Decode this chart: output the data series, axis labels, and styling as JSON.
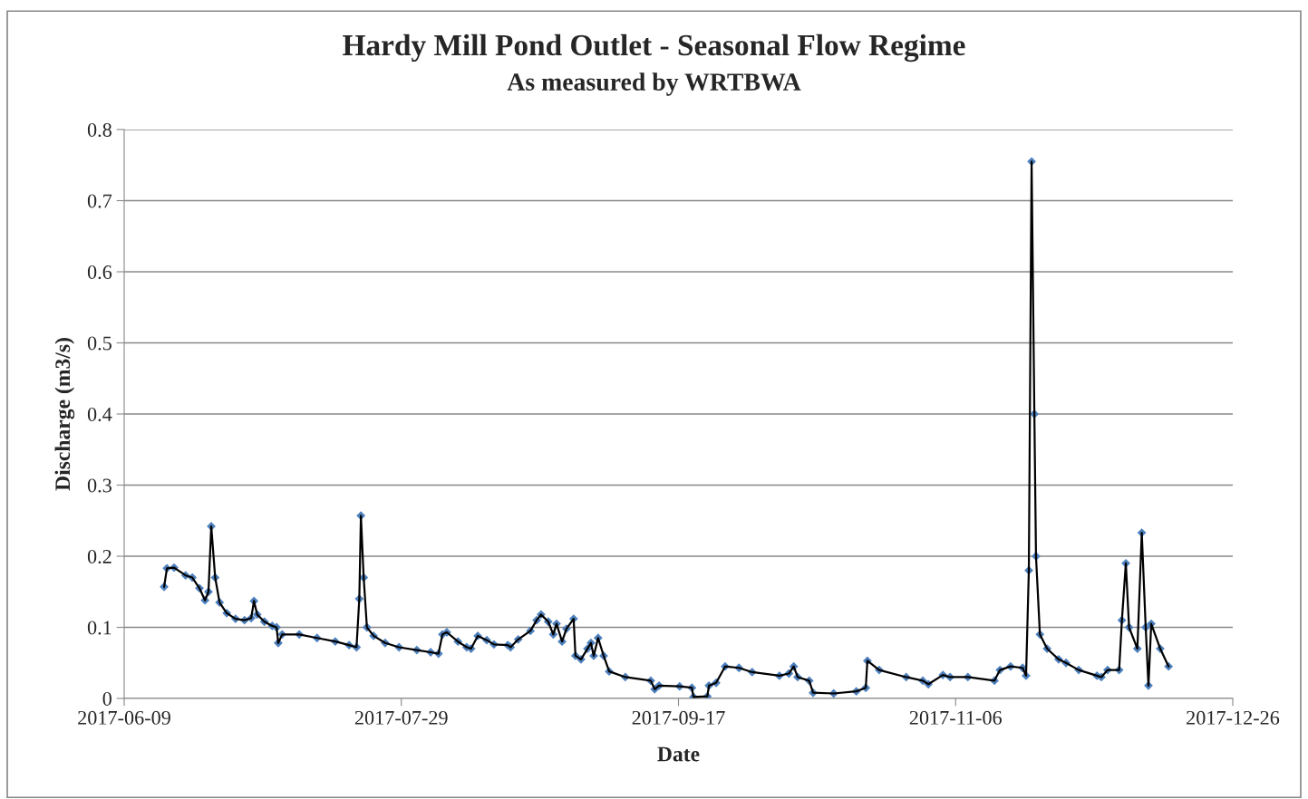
{
  "chart_data": {
    "type": "line",
    "title": "Hardy Mill Pond Outlet - Seasonal Flow Regime",
    "subtitle": "As measured by WRTBWA",
    "xlabel": "Date",
    "ylabel": "Discharge (m3/s)",
    "x": [
      "2017-06-16T05:00",
      "2017-06-16T17:00",
      "2017-06-18T00:00",
      "2017-06-20T02:00",
      "2017-06-21T07:00",
      "2017-06-22T14:00",
      "2017-06-23T14:00",
      "2017-06-24T05:00",
      "2017-06-24T17:00",
      "2017-06-25T10:00",
      "2017-06-26T05:00",
      "2017-06-27T12:00",
      "2017-06-29T02:00",
      "2017-06-30T17:00",
      "2017-07-01T22:00",
      "2017-07-02T10:00",
      "2017-07-03T00:00",
      "2017-07-04T07:00",
      "2017-07-05T17:00",
      "2017-07-06T12:00",
      "2017-07-06T19:00",
      "2017-07-07T12:00",
      "2017-07-10T14:00",
      "2017-07-13T19:00",
      "2017-07-17T02:00",
      "2017-07-19T14:00",
      "2017-07-20T22:00",
      "2017-07-21T10:00",
      "2017-07-21T17:00",
      "2017-07-22T05:00",
      "2017-07-22T19:00",
      "2017-07-24T00:00",
      "2017-07-26T02:00",
      "2017-07-28T14:00",
      "2017-07-31T19:00",
      "2017-08-03T07:00",
      "2017-08-04T17:00",
      "2017-08-05T10:00",
      "2017-08-06T05:00",
      "2017-08-08T05:00",
      "2017-08-09T19:00",
      "2017-08-10T14:00",
      "2017-08-11T19:00",
      "2017-08-13T10:00",
      "2017-08-14T17:00",
      "2017-08-17T05:00",
      "2017-08-17T17:00",
      "2017-08-19T02:00",
      "2017-08-21T07:00",
      "2017-08-22T10:00",
      "2017-08-23T05:00",
      "2017-08-24T12:00",
      "2017-08-25T10:00",
      "2017-08-26T00:00",
      "2017-08-27T00:00",
      "2017-08-27T19:00",
      "2017-08-29T02:00",
      "2017-08-29T10:00",
      "2017-08-30T10:00",
      "2017-08-31T14:00",
      "2017-09-01T05:00",
      "2017-09-01T17:00",
      "2017-09-02T12:00",
      "2017-09-03T12:00",
      "2017-09-04T12:00",
      "2017-09-07T10:00",
      "2017-09-12T00:00",
      "2017-09-12T17:00",
      "2017-09-13T12:00",
      "2017-09-17T05:00",
      "2017-09-19T10:00",
      "2017-09-19T17:00",
      "2017-09-22T05:00",
      "2017-09-22T12:00",
      "2017-09-23T19:00",
      "2017-09-25T10:00",
      "2017-09-27T22:00",
      "2017-09-30T07:00",
      "2017-10-05T05:00",
      "2017-10-06T22:00",
      "2017-10-07T19:00",
      "2017-10-08T12:00",
      "2017-10-10T14:00",
      "2017-10-11T07:00",
      "2017-10-15T00:00",
      "2017-10-19T02:00",
      "2017-10-20T19:00",
      "2017-10-21T02:00",
      "2017-10-23T05:00",
      "2017-10-28T02:00",
      "2017-10-31T02:00",
      "2017-11-01T02:00",
      "2017-11-03T17:00",
      "2017-11-05T00:00",
      "2017-11-08T05:00",
      "2017-11-13T00:00",
      "2017-11-14T00:00",
      "2017-11-15T22:00",
      "2017-11-18T02:00",
      "2017-11-18T17:00",
      "2017-11-19T05:00",
      "2017-11-19T17:00",
      "2017-11-20T05:00",
      "2017-11-20T12:00",
      "2017-11-21T05:00",
      "2017-11-22T12:00",
      "2017-11-24T14:00",
      "2017-11-25T22:00",
      "2017-11-28T05:00",
      "2017-12-01T12:00",
      "2017-12-02T07:00",
      "2017-12-03T10:00",
      "2017-12-05T12:00",
      "2017-12-06T00:00",
      "2017-12-06T17:00",
      "2017-12-07T07:00",
      "2017-12-08T19:00",
      "2017-12-09T14:00",
      "2017-12-10T07:00",
      "2017-12-10T19:00",
      "2017-12-11T07:00",
      "2017-12-12T22:00",
      "2017-12-14T10:00"
    ],
    "series": [
      {
        "color": "#4f81bd",
        "values": [
          0.157,
          0.183,
          0.184,
          0.173,
          0.17,
          0.155,
          0.138,
          0.15,
          0.242,
          0.17,
          0.135,
          0.12,
          0.112,
          0.11,
          0.113,
          0.137,
          0.118,
          0.108,
          0.102,
          0.1,
          0.078,
          0.09,
          0.09,
          0.085,
          0.08,
          0.075,
          0.072,
          0.14,
          0.257,
          0.17,
          0.1,
          0.088,
          0.078,
          0.072,
          0.068,
          0.065,
          0.063,
          0.09,
          0.093,
          0.08,
          0.072,
          0.07,
          0.088,
          0.082,
          0.076,
          0.075,
          0.072,
          0.083,
          0.095,
          0.11,
          0.118,
          0.108,
          0.09,
          0.105,
          0.08,
          0.098,
          0.112,
          0.06,
          0.055,
          0.07,
          0.078,
          0.06,
          0.085,
          0.06,
          0.038,
          0.03,
          0.025,
          0.013,
          0.018,
          0.017,
          0.015,
          0.002,
          0.003,
          0.018,
          0.022,
          0.045,
          0.043,
          0.037,
          0.032,
          0.035,
          0.045,
          0.03,
          0.025,
          0.008,
          0.007,
          0.01,
          0.015,
          0.053,
          0.04,
          0.03,
          0.025,
          0.02,
          0.033,
          0.03,
          0.03,
          0.025,
          0.04,
          0.045,
          0.043,
          0.032,
          0.18,
          0.755,
          0.4,
          0.2,
          0.09,
          0.07,
          0.055,
          0.05,
          0.04,
          0.032,
          0.03,
          0.04,
          0.04,
          0.11,
          0.19,
          0.1,
          0.07,
          0.233,
          0.1,
          0.018,
          0.105,
          0.07,
          0.045
        ]
      }
    ],
    "xlim": [
      "2017-06-09",
      "2017-12-26"
    ],
    "xticks": [
      {
        "value": "2017-06-09",
        "label": "2017-06-09"
      },
      {
        "value": "2017-07-29",
        "label": "2017-07-29"
      },
      {
        "value": "2017-09-17",
        "label": "2017-09-17"
      },
      {
        "value": "2017-11-06",
        "label": "2017-11-06"
      },
      {
        "value": "2017-12-26",
        "label": "2017-12-26"
      }
    ],
    "ylim": [
      0,
      0.8
    ],
    "yticks": [
      0,
      0.1,
      0.2,
      0.3,
      0.4,
      0.5,
      0.6,
      0.7,
      0.8
    ],
    "grid": "y",
    "legend": false,
    "marker": "diamond",
    "line_style": "solid"
  }
}
